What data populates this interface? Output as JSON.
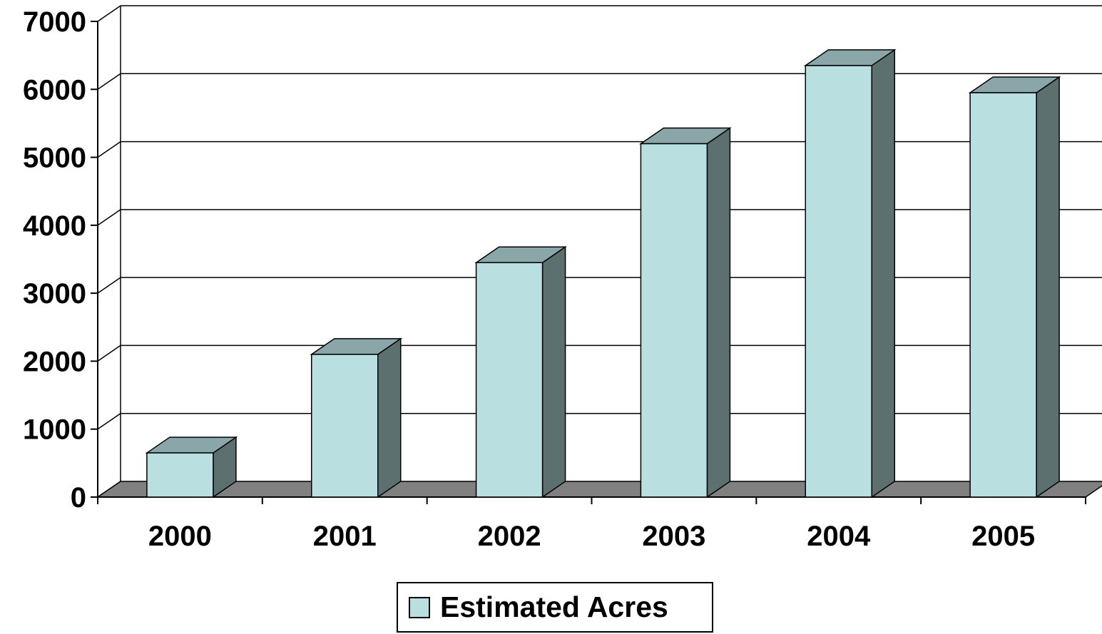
{
  "chart_data": {
    "type": "bar",
    "categories": [
      "2000",
      "2001",
      "2002",
      "2003",
      "2004",
      "2005"
    ],
    "series": [
      {
        "name": "Estimated Acres",
        "values": [
          650,
          2100,
          3450,
          5200,
          6350,
          5950
        ]
      }
    ],
    "y_ticks": [
      "0",
      "1000",
      "2000",
      "3000",
      "4000",
      "5000",
      "6000",
      "7000"
    ],
    "ylim": [
      0,
      7000
    ],
    "grid": true,
    "legend_position": "bottom",
    "colors": {
      "bar_front": "#b9dfe1",
      "bar_top": "#8aa6a8",
      "bar_side": "#5d7070",
      "floor": "#808080"
    }
  }
}
